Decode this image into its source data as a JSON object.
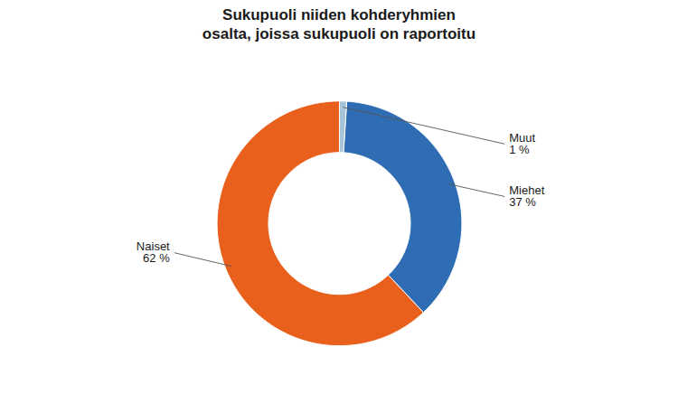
{
  "chart_data": {
    "type": "pie",
    "title": "Sukupuoli niiden kohderyhmien\nosalta, joissa sukupuoli  on raportoitu",
    "categories": [
      "Muut",
      "Miehet",
      "Naiset"
    ],
    "values": [
      1,
      37,
      62
    ],
    "value_labels": [
      "1 %",
      "37 %",
      "62 %"
    ],
    "colors": [
      "#A8C4D8",
      "#2E6DB4",
      "#E8601C"
    ],
    "data_labels": true
  }
}
